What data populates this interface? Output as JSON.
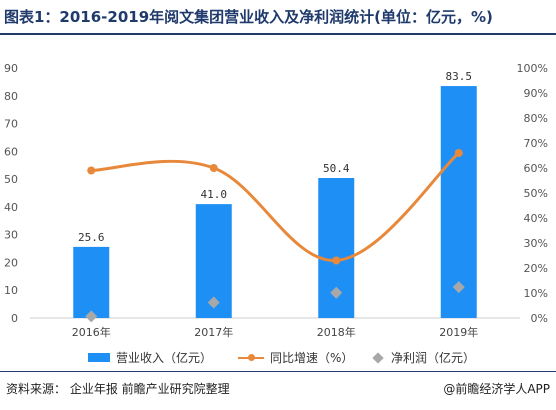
{
  "title": "图表1：2016-2019年阅文集团营业收入及净利润统计(单位：亿元，%)",
  "footer": {
    "source": "资料来源：  企业年报  前瞻产业研究院整理",
    "brand": "@前瞻经济学人APP"
  },
  "chart_data": {
    "type": "bar",
    "categories": [
      "2016年",
      "2017年",
      "2018年",
      "2019年"
    ],
    "series": [
      {
        "name": "营业收入（亿元）",
        "kind": "bar",
        "axis": "left",
        "values": [
          25.6,
          41.0,
          50.4,
          83.5
        ],
        "labels": [
          "25.6",
          "41.0",
          "50.4",
          "83.5"
        ],
        "color": "#1e90f5"
      },
      {
        "name": "同比增速（%）",
        "kind": "line",
        "axis": "right",
        "values": [
          59,
          60,
          23,
          66
        ],
        "color": "#e8883a"
      },
      {
        "name": "净利润（亿元）",
        "kind": "scatter",
        "axis": "left",
        "values": [
          0.6,
          5.6,
          9.1,
          11.1
        ],
        "color": "#a8a8a8"
      }
    ],
    "y_left": {
      "min": 0,
      "max": 90,
      "ticks": [
        "0",
        "10",
        "20",
        "30",
        "40",
        "50",
        "60",
        "70",
        "80",
        "90"
      ]
    },
    "y_right": {
      "min": 0,
      "max": 100,
      "ticks": [
        "0%",
        "10%",
        "20%",
        "30%",
        "40%",
        "50%",
        "60%",
        "70%",
        "80%",
        "90%",
        "100%"
      ]
    },
    "grid": false,
    "legend": "bottom"
  }
}
